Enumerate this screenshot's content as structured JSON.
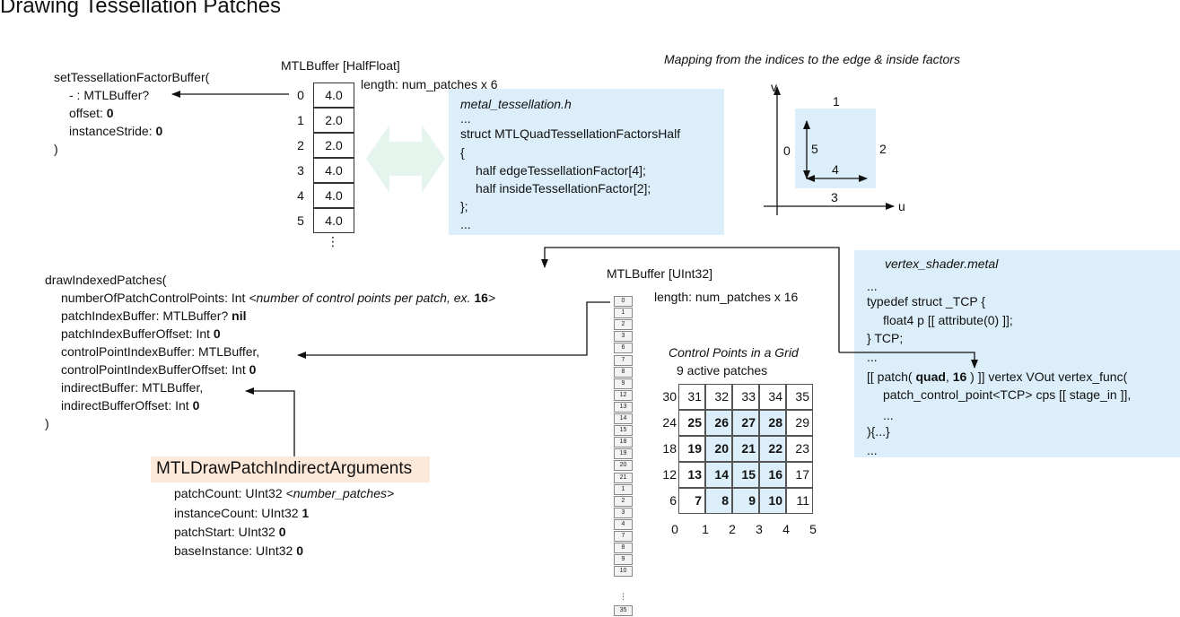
{
  "title": "Drawing Tessellation Patches",
  "set_factor": {
    "line1": "setTessellationFactorBuffer(",
    "line2": "- : MTLBuffer?",
    "offset_label": "offset: ",
    "offset_value": "0",
    "stride_label": "instanceStride: ",
    "stride_value": "0",
    "close": ")"
  },
  "half_buffer": {
    "title": "MTLBuffer [HalfFloat]",
    "length": "length: num_patches x 6",
    "indices": [
      "0",
      "1",
      "2",
      "3",
      "4",
      "5"
    ],
    "values": [
      "4.0",
      "2.0",
      "2.0",
      "4.0",
      "4.0",
      "4.0"
    ],
    "more": "⋮"
  },
  "metal_tess": {
    "filename": "metal_tessellation.h",
    "line1": "...",
    "line2": "struct MTLQuadTessellationFactorsHalf",
    "line3": "{",
    "line4": "half edgeTessellationFactor[4];",
    "line5": "half insideTessellationFactor[2];",
    "line6": "};",
    "line7": "..."
  },
  "mapping": {
    "caption": "Mapping from the indices to the edge & inside factors",
    "v_axis": "v",
    "u_axis": "u",
    "edge_top": "1",
    "edge_left": "0",
    "edge_right": "2",
    "edge_bottom": "3",
    "inside_v": "5",
    "inside_u": "4"
  },
  "draw_patches": {
    "line1": "drawIndexedPatches(",
    "l2_label": "numberOfPatchControlPoints: Int ",
    "l2_note": "<number of control points per patch, ex. ",
    "l2_num": "16",
    "l2_close": ">",
    "l3_label": "patchIndexBuffer: MTLBuffer? ",
    "l3_value": "nil",
    "l4_label": "patchIndexBufferOffset: Int ",
    "l4_value": "0",
    "l5": "controlPointIndexBuffer: MTLBuffer,",
    "l6_label": "controlPointIndexBufferOffset: Int ",
    "l6_value": "0",
    "l7": "indirectBuffer: MTLBuffer,",
    "l8_label": "indirectBufferOffset: Int ",
    "l8_value": "0",
    "close": ")"
  },
  "indirect_args": {
    "title": "MTLDrawPatchIndirectArguments",
    "l1_label": "patchCount: UInt32 ",
    "l1_note": "<number_patches>",
    "l2_label": "instanceCount: UInt32 ",
    "l2_value": "1",
    "l3_label": "patchStart: UInt32 ",
    "l3_value": "0",
    "l4_label": "baseInstance: UInt32 ",
    "l4_value": "0"
  },
  "uint_buffer": {
    "title": "MTLBuffer [UInt32]",
    "length": "length: num_patches x 16",
    "cells": [
      "0",
      "1",
      "2",
      "3",
      "6",
      "7",
      "8",
      "9",
      "12",
      "13",
      "14",
      "15",
      "18",
      "19",
      "20",
      "21",
      "1",
      "2",
      "3",
      "4",
      "7",
      "8",
      "9",
      "10"
    ],
    "dots": "⋮",
    "last": "35"
  },
  "grid": {
    "title": "Control Points in a Grid",
    "subtitle": "9 active patches",
    "row_labels": [
      "30",
      "24",
      "18",
      "12",
      "6"
    ],
    "col_labels": [
      "0",
      "1",
      "2",
      "3",
      "4",
      "5"
    ],
    "rows": [
      [
        {
          "v": "31",
          "b": false
        },
        {
          "v": "32",
          "b": false
        },
        {
          "v": "33",
          "b": false
        },
        {
          "v": "34",
          "b": false
        },
        {
          "v": "35",
          "b": false
        }
      ],
      [
        {
          "v": "25",
          "b": true
        },
        {
          "v": "26",
          "b": true
        },
        {
          "v": "27",
          "b": true
        },
        {
          "v": "28",
          "b": true
        },
        {
          "v": "29",
          "b": false
        }
      ],
      [
        {
          "v": "19",
          "b": true
        },
        {
          "v": "20",
          "b": true
        },
        {
          "v": "21",
          "b": true
        },
        {
          "v": "22",
          "b": true
        },
        {
          "v": "23",
          "b": false
        }
      ],
      [
        {
          "v": "13",
          "b": true
        },
        {
          "v": "14",
          "b": true
        },
        {
          "v": "15",
          "b": true
        },
        {
          "v": "16",
          "b": true
        },
        {
          "v": "17",
          "b": false
        }
      ],
      [
        {
          "v": "7",
          "b": true
        },
        {
          "v": "8",
          "b": true
        },
        {
          "v": "9",
          "b": true
        },
        {
          "v": "10",
          "b": true
        },
        {
          "v": "11",
          "b": false
        }
      ]
    ]
  },
  "vertex_shader": {
    "filename": "vertex_shader.metal",
    "l1": "...",
    "l2": "typedef struct _TCP {",
    "l3": "float4 p [[ attribute(0) ]];",
    "l4": "} TCP;",
    "l5": "...",
    "l6_a": "[[ patch( ",
    "l6_b": "quad",
    "l6_c": ", ",
    "l6_d": "16",
    "l6_e": " ) ]] vertex VOut vertex_func(",
    "l7": "patch_control_point<TCP> cps [[ stage_in ]],",
    "l8": "...",
    "l9": "){...}",
    "l10": "..."
  }
}
